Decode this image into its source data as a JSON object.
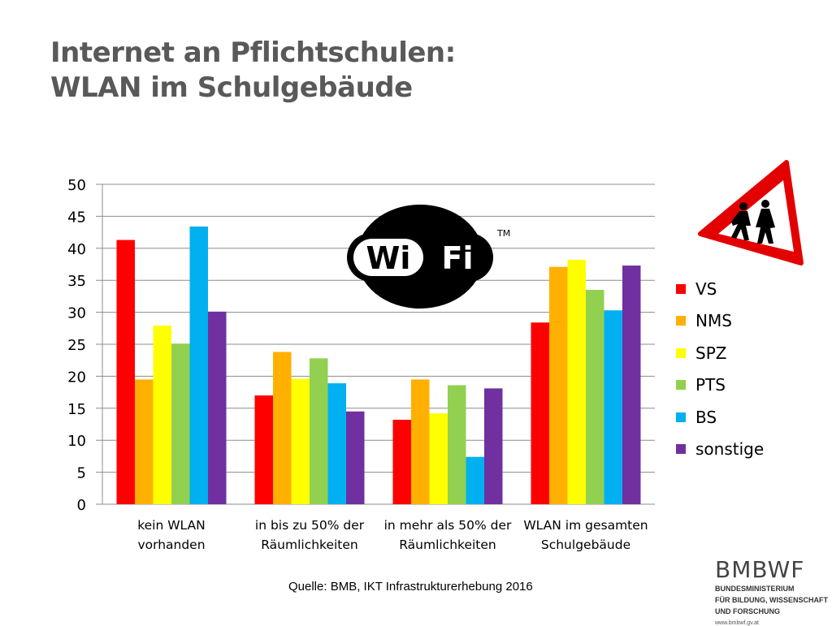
{
  "title": {
    "line1": "Internet an Pflichtschulen:",
    "line2": "WLAN im Schulgebäude"
  },
  "chart_data": {
    "type": "bar",
    "categories": [
      [
        "kein WLAN",
        "vorhanden"
      ],
      [
        "in bis zu 50% der",
        "Räumlichkeiten"
      ],
      [
        "in mehr als 50% der",
        "Räumlichkeiten"
      ],
      [
        "WLAN im gesamten",
        "Schulgebäude"
      ]
    ],
    "series": [
      {
        "name": "VS",
        "color": "#ff0000",
        "values": [
          41.3,
          17.0,
          13.2,
          28.4
        ]
      },
      {
        "name": "NMS",
        "color": "#ffb000",
        "values": [
          19.5,
          23.8,
          19.5,
          37.1
        ]
      },
      {
        "name": "SPZ",
        "color": "#ffff00",
        "values": [
          27.9,
          19.6,
          14.2,
          38.2
        ]
      },
      {
        "name": "PTS",
        "color": "#92d050",
        "values": [
          25.1,
          22.8,
          18.6,
          33.5
        ]
      },
      {
        "name": "BS",
        "color": "#00b0f0",
        "values": [
          43.4,
          18.9,
          7.4,
          30.3
        ]
      },
      {
        "name": "sonstige",
        "color": "#7030a0",
        "values": [
          30.1,
          14.5,
          18.1,
          37.3
        ]
      }
    ],
    "ylim": [
      0,
      50
    ],
    "yticks": [
      0,
      5,
      10,
      15,
      20,
      25,
      30,
      35,
      40,
      45,
      50
    ],
    "grid": true,
    "legend": "right"
  },
  "wifi_logo": {
    "text_left": "Wi",
    "text_right": "Fi",
    "trademark": "TM"
  },
  "source": "Quelle: BMB, IKT Infrastrukturerhebung 2016",
  "logo": {
    "name": "BMBWF",
    "sub1": "BUNDESMINISTERIUM",
    "sub2": "FÜR BILDUNG, WISSENSCHAFT",
    "sub3": "UND FORSCHUNG",
    "url": "www.bmbwf.gv.at"
  }
}
